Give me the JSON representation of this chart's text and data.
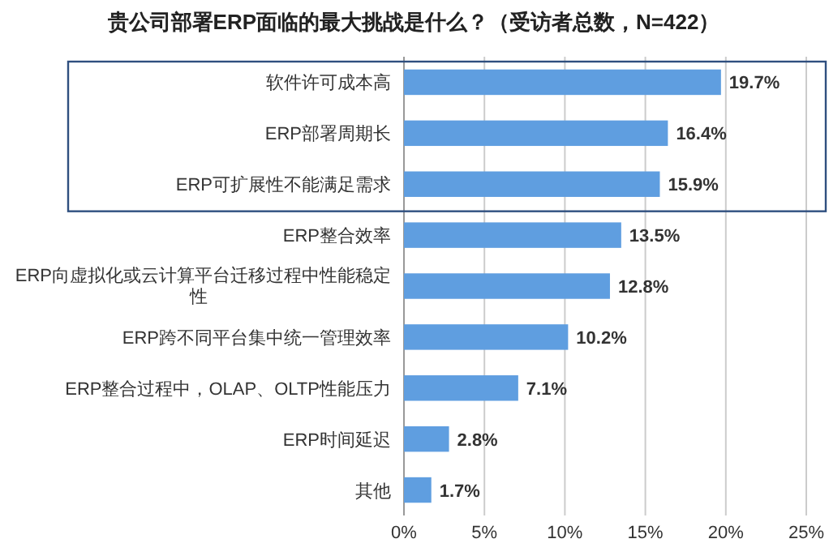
{
  "chart_data": {
    "type": "bar",
    "orientation": "horizontal",
    "title": "贵公司部署ERP面临的最大挑战是什么？（受访者总数，N=422）",
    "categories": [
      "软件许可成本高",
      "ERP部署周期长",
      "ERP可扩展性不能满足需求",
      "ERP整合效率",
      "ERP向虚拟化或云计算平台迁移过程中性能稳定性",
      "ERP跨不同平台集中统一管理效率",
      "ERP整合过程中，OLAP、OLTP性能压力",
      "ERP时间延迟",
      "其他"
    ],
    "values": [
      19.7,
      16.4,
      15.9,
      13.5,
      12.8,
      10.2,
      7.1,
      2.8,
      1.7
    ],
    "value_labels": [
      "19.7%",
      "16.4%",
      "15.9%",
      "13.5%",
      "12.8%",
      "10.2%",
      "7.1%",
      "2.8%",
      "1.7%"
    ],
    "color": "#5f9ee0",
    "xlim": [
      0,
      25
    ],
    "xticks": [
      {
        "value": 0,
        "label": "0%"
      },
      {
        "value": 5,
        "label": "5%"
      },
      {
        "value": 10,
        "label": "10%"
      },
      {
        "value": 15,
        "label": "15%"
      },
      {
        "value": 20,
        "label": "20%"
      },
      {
        "value": 25,
        "label": "25%"
      }
    ],
    "grid": "x"
  }
}
